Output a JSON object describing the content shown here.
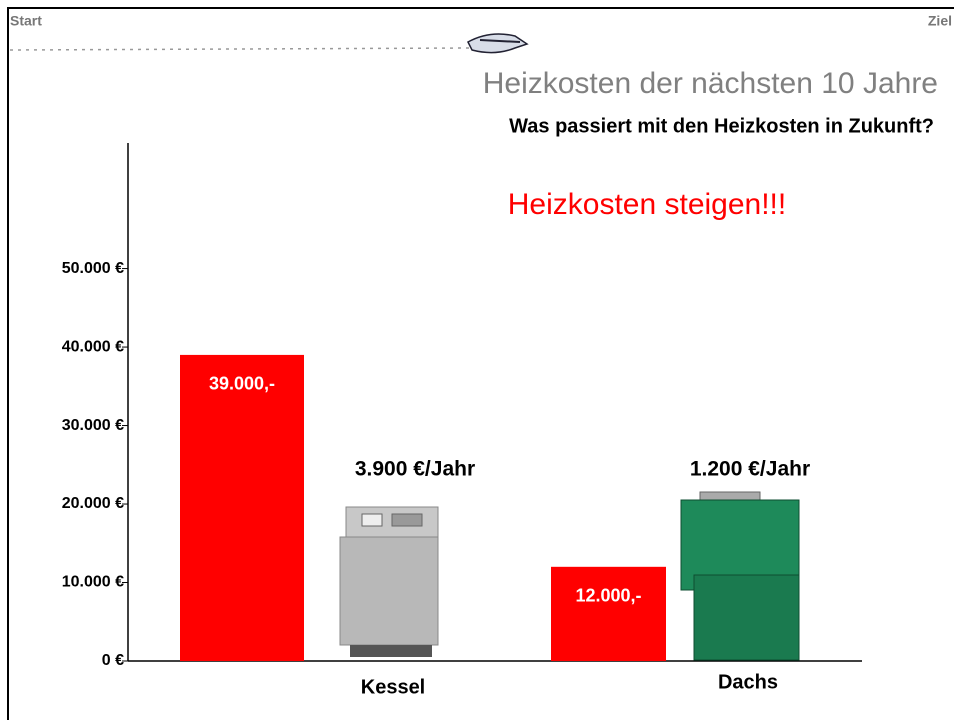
{
  "header": {
    "start": "Start",
    "goal": "Ziel"
  },
  "chart_data": {
    "type": "bar",
    "title": "Heizkosten der nächsten 10 Jahre",
    "subtitle": "Was passiert mit den Heizkosten in Zukunft?",
    "annotation": "Heizkosten steigen!!!",
    "categories": [
      "Kessel",
      "Dachs"
    ],
    "values": [
      39000,
      12000
    ],
    "value_labels": [
      "39.000,-",
      "12.000,-"
    ],
    "yearly_labels": [
      "3.900 €/Jahr",
      "1.200 €/Jahr"
    ],
    "color": "#ff0000",
    "ylim": [
      0,
      66000
    ],
    "yticks": [
      {
        "value": 0,
        "label": "0 €"
      },
      {
        "value": 10000,
        "label": "10.000 €"
      },
      {
        "value": 20000,
        "label": "20.000 €"
      },
      {
        "value": 30000,
        "label": "30.000 €"
      },
      {
        "value": 40000,
        "label": "40.000 €"
      },
      {
        "value": 50000,
        "label": "50.000 €"
      }
    ]
  }
}
